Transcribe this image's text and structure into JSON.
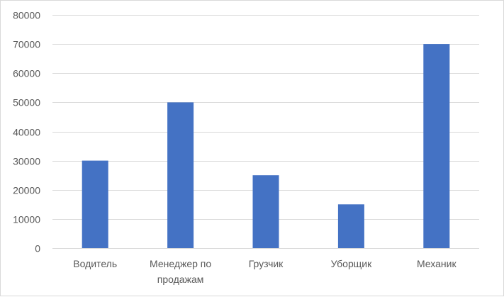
{
  "chart_data": {
    "type": "bar",
    "categories": [
      [
        "Водитель"
      ],
      [
        "Менеджер по",
        "продажам"
      ],
      [
        "Грузчик"
      ],
      [
        "Уборщик"
      ],
      [
        "Механик"
      ]
    ],
    "values": [
      30000,
      50000,
      25000,
      15000,
      70000
    ],
    "ylim": [
      0,
      80000
    ],
    "yticks": [
      0,
      10000,
      20000,
      30000,
      40000,
      50000,
      60000,
      70000,
      80000
    ],
    "grid": true,
    "bar_color": "#4472C4",
    "grid_color": "#d9d9d9",
    "title": "",
    "xlabel": "",
    "ylabel": ""
  }
}
